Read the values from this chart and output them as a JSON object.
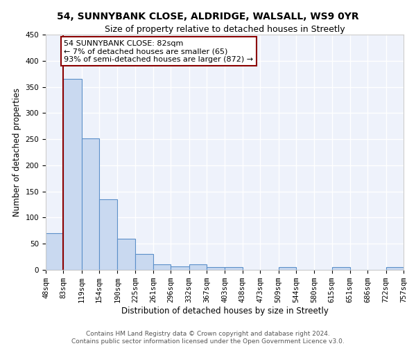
{
  "title1": "54, SUNNYBANK CLOSE, ALDRIDGE, WALSALL, WS9 0YR",
  "title2": "Size of property relative to detached houses in Streetly",
  "xlabel": "Distribution of detached houses by size in Streetly",
  "ylabel": "Number of detached properties",
  "bin_edges": [
    48,
    83,
    119,
    154,
    190,
    225,
    261,
    296,
    332,
    367,
    403,
    438,
    473,
    509,
    544,
    580,
    615,
    651,
    686,
    722,
    757
  ],
  "bar_heights": [
    70,
    365,
    252,
    135,
    60,
    30,
    10,
    7,
    10,
    5,
    5,
    0,
    0,
    5,
    0,
    0,
    5,
    0,
    0,
    5
  ],
  "bar_color": "#c9d9f0",
  "bar_edge_color": "#5b8fc9",
  "vline_x": 82,
  "vline_color": "#8b0000",
  "annotation_line1": "54 SUNNYBANK CLOSE: 82sqm",
  "annotation_line2": "← 7% of detached houses are smaller (65)",
  "annotation_line3": "93% of semi-detached houses are larger (872) →",
  "annotation_box_color": "white",
  "annotation_box_edge_color": "#8b0000",
  "ylim": [
    0,
    450
  ],
  "xlim": [
    48,
    757
  ],
  "footer1": "Contains HM Land Registry data © Crown copyright and database right 2024.",
  "footer2": "Contains public sector information licensed under the Open Government Licence v3.0.",
  "bg_color": "#eef2fb",
  "grid_color": "white",
  "title1_fontsize": 10,
  "title2_fontsize": 9,
  "xlabel_fontsize": 8.5,
  "ylabel_fontsize": 8.5,
  "tick_fontsize": 7.5,
  "annotation_fontsize": 8,
  "footer_fontsize": 6.5
}
